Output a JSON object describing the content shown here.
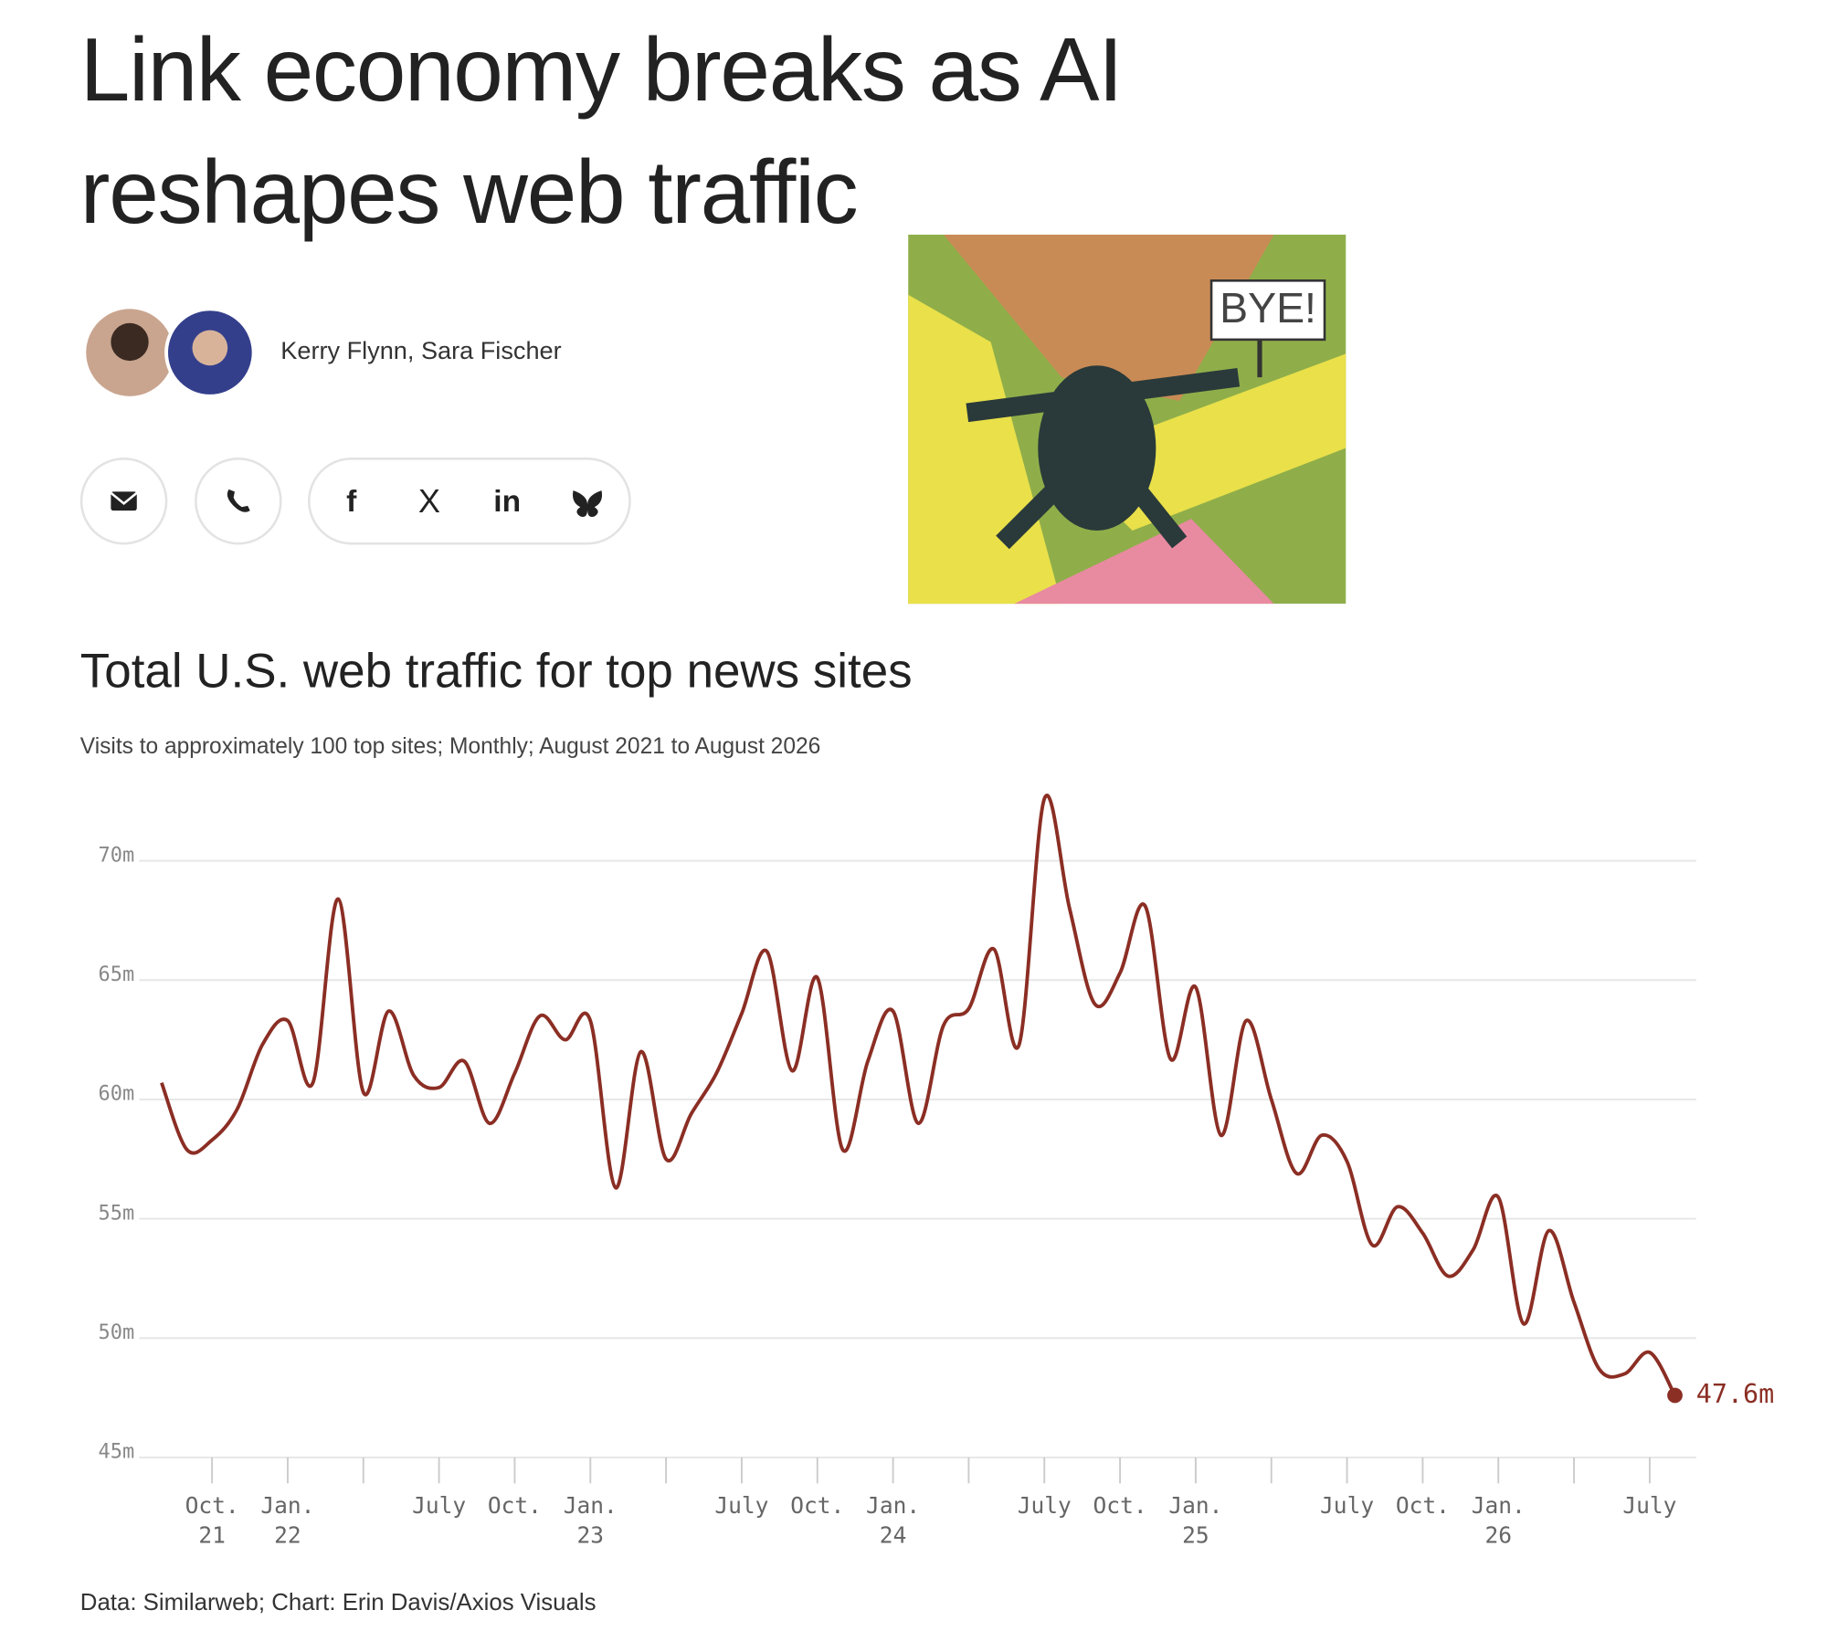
{
  "header": {
    "title": "Link economy breaks as AI reshapes web traffic",
    "authors": "Kerry Flynn, Sara Fischer"
  },
  "share_icons": {
    "facebook": "f",
    "x": "X",
    "linkedin": "in"
  },
  "image": {
    "sign_text": "BYE!"
  },
  "chart_data": {
    "type": "line",
    "title": "Total U.S. web traffic for top news sites",
    "subtitle": "Visits to approximately 100 top sites; Monthly; August 2021 to August 2026",
    "source": "Data: Similarweb; Chart: Erin Davis/Axios Visuals",
    "categories": [
      null,
      null,
      "Oct.",
      null,
      null,
      "Jan.",
      null,
      null,
      null,
      null,
      null,
      "July",
      null,
      null,
      "Oct.",
      null,
      null,
      "Jan.",
      null,
      null,
      null,
      null,
      null,
      "July",
      null,
      null,
      "Oct.",
      null,
      null,
      "Jan.",
      null,
      null,
      null,
      null,
      null,
      "July",
      null,
      null,
      "Oct.",
      null,
      null,
      "Jan.",
      null,
      null,
      null,
      null,
      null,
      "July",
      null,
      null,
      "Oct.",
      null,
      null,
      "Jan.",
      null,
      null,
      null,
      null,
      null,
      "July",
      null
    ],
    "category_years": [
      null,
      null,
      "21",
      null,
      null,
      "22",
      null,
      null,
      null,
      null,
      null,
      null,
      null,
      null,
      null,
      null,
      null,
      "23",
      null,
      null,
      null,
      null,
      null,
      null,
      null,
      null,
      null,
      null,
      null,
      "24",
      null,
      null,
      null,
      null,
      null,
      null,
      null,
      null,
      null,
      null,
      null,
      "25",
      null,
      null,
      null,
      null,
      null,
      null,
      null,
      null,
      null,
      null,
      null,
      "26",
      null,
      null,
      null,
      null,
      null,
      null,
      null
    ],
    "series": [
      {
        "name": "Visits",
        "color": "#8b2e24",
        "values": [
          60.7,
          57.9,
          58.3,
          59.6,
          62.3,
          63.3,
          60.7,
          68.4,
          60.3,
          63.7,
          61.0,
          60.5,
          61.6,
          59.0,
          61.1,
          63.5,
          62.5,
          63.3,
          56.3,
          62.0,
          57.5,
          59.4,
          61.1,
          63.6,
          66.2,
          61.2,
          65.1,
          57.9,
          61.6,
          63.7,
          59.0,
          63.1,
          63.8,
          66.3,
          62.3,
          72.6,
          68.0,
          64.0,
          65.3,
          68.1,
          61.7,
          64.7,
          58.5,
          63.3,
          60.0,
          56.9,
          58.5,
          57.4,
          53.9,
          55.5,
          54.4,
          52.6,
          53.7,
          55.9,
          50.6,
          54.5,
          51.5,
          48.7,
          48.5,
          49.4,
          47.6
        ],
        "value_labels": [
          null,
          null,
          null,
          null,
          null,
          null,
          null,
          null,
          null,
          null,
          null,
          null,
          null,
          null,
          null,
          null,
          null,
          null,
          null,
          null,
          null,
          null,
          null,
          null,
          null,
          null,
          null,
          null,
          null,
          null,
          null,
          null,
          null,
          null,
          null,
          null,
          null,
          null,
          null,
          null,
          null,
          null,
          null,
          null,
          null,
          null,
          null,
          null,
          null,
          null,
          null,
          null,
          null,
          null,
          null,
          null,
          null,
          null,
          null,
          null,
          "47.6m"
        ]
      }
    ],
    "ylim": [
      45,
      73
    ],
    "yticks": [
      {
        "value": 45,
        "label": "45m"
      },
      {
        "value": 50,
        "label": "50m"
      },
      {
        "value": 55,
        "label": "55m"
      },
      {
        "value": 60,
        "label": "60m"
      },
      {
        "value": 65,
        "label": "65m"
      },
      {
        "value": 70,
        "label": "70m"
      }
    ],
    "grid": true
  }
}
